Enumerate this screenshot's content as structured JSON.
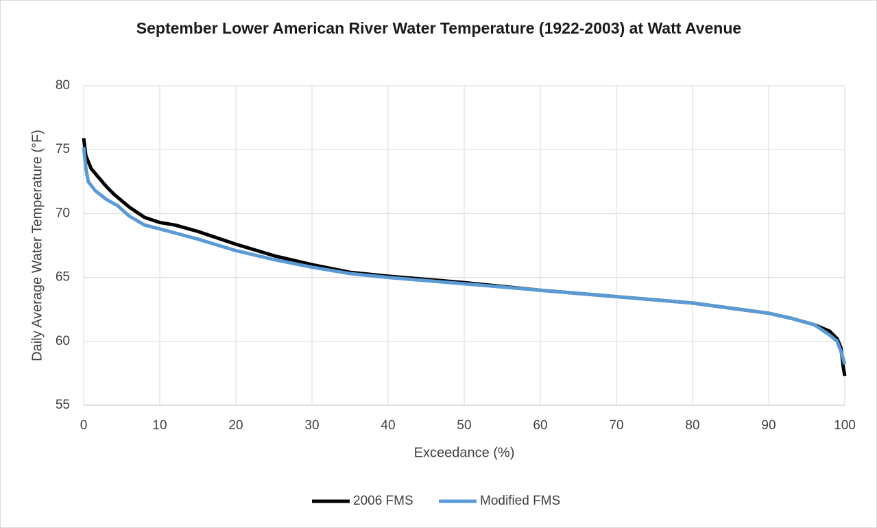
{
  "chart_data": {
    "type": "line",
    "title": "September Lower American River Water Temperature (1922-2003) at Watt Avenue",
    "x_label": "Exceedance (%)",
    "y_label": "Daily Average Water Temperature (°F)",
    "xlim": [
      0,
      100
    ],
    "xticks": [
      0,
      10,
      20,
      30,
      40,
      50,
      60,
      70,
      80,
      90,
      100
    ],
    "ylim": [
      55,
      80
    ],
    "yticks": [
      55,
      60,
      65,
      70,
      75,
      80
    ],
    "grid": true,
    "legend": "bottom",
    "series": [
      {
        "name": "2006 FMS",
        "color": "#000000",
        "x": [
          0,
          0.3,
          1,
          2,
          3,
          4,
          5,
          6,
          7,
          8,
          10,
          12,
          15,
          20,
          25,
          30,
          35,
          40,
          50,
          60,
          70,
          80,
          85,
          90,
          93,
          96,
          98,
          99,
          99.5,
          99.8,
          100
        ],
        "values": [
          75.9,
          74.5,
          73.5,
          72.8,
          72.1,
          71.5,
          71.0,
          70.5,
          70.1,
          69.7,
          69.3,
          69.1,
          68.6,
          67.6,
          66.7,
          66.0,
          65.4,
          65.1,
          64.6,
          64.0,
          63.5,
          63.0,
          62.6,
          62.2,
          61.8,
          61.3,
          60.8,
          60.2,
          59.5,
          58.0,
          57.3
        ]
      },
      {
        "name": "Modified FMS",
        "color": "#5b9bd5",
        "x": [
          0,
          0.3,
          0.6,
          1.5,
          3,
          4.5,
          6,
          8,
          10,
          15,
          20,
          25,
          30,
          35,
          40,
          50,
          60,
          70,
          80,
          85,
          90,
          93,
          96,
          98,
          99,
          99.5,
          100
        ],
        "values": [
          75.2,
          73.5,
          72.5,
          71.8,
          71.1,
          70.6,
          69.8,
          69.1,
          68.8,
          68.0,
          67.1,
          66.4,
          65.8,
          65.3,
          65.0,
          64.5,
          64.0,
          63.5,
          63.0,
          62.6,
          62.2,
          61.8,
          61.3,
          60.5,
          60.0,
          59.2,
          58.2
        ]
      }
    ]
  }
}
